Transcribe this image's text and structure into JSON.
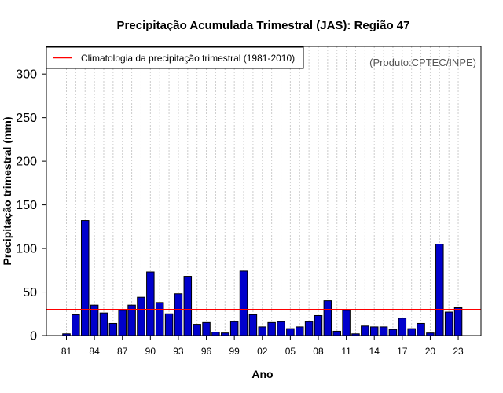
{
  "chart_data": {
    "type": "bar",
    "title": "Precipitação Acumulada Trimestral (JAS): Região 47",
    "xlabel": "Ano",
    "ylabel": "Precipitação trimestral (mm)",
    "credit": "(Produto:CPTEC/INPE)",
    "legend": {
      "label": "Climatologia da precipitação trimestral (1981-2010)",
      "position": "top-left"
    },
    "climatology": 30,
    "ylim": [
      0,
      330
    ],
    "yticks": [
      0,
      50,
      100,
      150,
      200,
      250,
      300
    ],
    "xtick_labels": [
      "81",
      "84",
      "87",
      "90",
      "93",
      "96",
      "99",
      "02",
      "05",
      "08",
      "11",
      "14",
      "17",
      "20",
      "23"
    ],
    "categories": [
      "1981",
      "1982",
      "1983",
      "1984",
      "1985",
      "1986",
      "1987",
      "1988",
      "1989",
      "1990",
      "1991",
      "1992",
      "1993",
      "1994",
      "1995",
      "1996",
      "1997",
      "1998",
      "1999",
      "2000",
      "2001",
      "2002",
      "2003",
      "2004",
      "2005",
      "2006",
      "2007",
      "2008",
      "2009",
      "2010",
      "2011",
      "2012",
      "2013",
      "2014",
      "2015",
      "2016",
      "2017",
      "2018",
      "2019",
      "2020",
      "2021",
      "2022",
      "2023"
    ],
    "values": [
      2,
      24,
      132,
      35,
      26,
      14,
      29,
      35,
      44,
      73,
      38,
      25,
      48,
      68,
      13,
      15,
      4,
      3,
      16,
      74,
      24,
      10,
      15,
      16,
      8,
      10,
      16,
      23,
      40,
      5,
      29,
      2,
      11,
      10,
      10,
      7,
      20,
      8,
      14,
      3,
      105,
      27,
      32
    ],
    "grid": true,
    "colors": {
      "bar": "#0000cc",
      "bar_edge": "#000000",
      "climatology": "#ff0000",
      "grid": "#cccccc"
    }
  }
}
